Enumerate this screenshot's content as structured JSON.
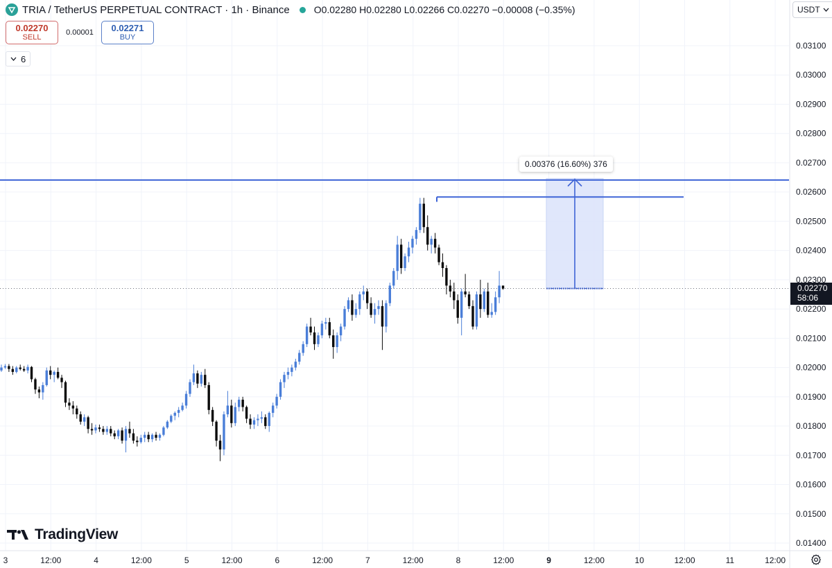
{
  "header": {
    "symbol": "TRIA / TetherUS PERPETUAL CONTRACT · 1h · Binance",
    "open_label": "O",
    "open": "0.02280",
    "high_label": "H",
    "high": "0.02280",
    "low_label": "L",
    "low": "0.02266",
    "close_label": "C",
    "close": "0.02270",
    "change": "−0.00008 (−0.35%)"
  },
  "order": {
    "sell_price": "0.02270",
    "sell_label": "SELL",
    "spread": "0.00001",
    "buy_price": "0.02271",
    "buy_label": "BUY"
  },
  "indicators_toggle": {
    "count": "6"
  },
  "currency": {
    "label": "USDT"
  },
  "branding": {
    "name": "TradingView"
  },
  "price_tag": {
    "price": "0.02270",
    "countdown": "58:06"
  },
  "measure": {
    "label": "0.00376 (16.60%) 376"
  },
  "colors": {
    "up": "#4a7ed8",
    "down": "#0b0b0b",
    "line": "#3d63d6",
    "measure_fill": "#dde4fb"
  },
  "chart_data": {
    "type": "candlestick",
    "title": "",
    "xlabel": "",
    "ylabel": "",
    "ylim": [
      0.0138,
      0.0316
    ],
    "y_ticks": [
      "0.03100",
      "0.03000",
      "0.02900",
      "0.02800",
      "0.02700",
      "0.02600",
      "0.02500",
      "0.02400",
      "0.02300",
      "0.02200",
      "0.02100",
      "0.02000",
      "0.01900",
      "0.01800",
      "0.01700",
      "0.01600",
      "0.01500",
      "0.01400"
    ],
    "x_ticks": [
      "3",
      "12:00",
      "4",
      "12:00",
      "5",
      "12:00",
      "6",
      "12:00",
      "7",
      "12:00",
      "8",
      "12:00",
      "9",
      "12:00",
      "10",
      "12:00",
      "11",
      "12:00"
    ],
    "x_tick_bold_index": 12,
    "current_price": 0.0227,
    "horizontal_lines": [
      0.02641,
      0.02583
    ],
    "measure_range": [
      0.0227,
      0.02646
    ],
    "candles": [
      [
        0.0199,
        0.0201,
        0.01985,
        0.02
      ],
      [
        0.02,
        0.02012,
        0.01995,
        0.02005
      ],
      [
        0.02005,
        0.02012,
        0.01985,
        0.01995
      ],
      [
        0.01995,
        0.02005,
        0.01975,
        0.01985
      ],
      [
        0.01985,
        0.02005,
        0.0198,
        0.02
      ],
      [
        0.02,
        0.0201,
        0.0199,
        0.01995
      ],
      [
        0.01995,
        0.02005,
        0.01985,
        0.0199
      ],
      [
        0.0199,
        0.0201,
        0.0198,
        0.02002
      ],
      [
        0.02002,
        0.02005,
        0.0195,
        0.0196
      ],
      [
        0.0196,
        0.01965,
        0.0191,
        0.01925
      ],
      [
        0.01925,
        0.01935,
        0.01895,
        0.01915
      ],
      [
        0.01915,
        0.0195,
        0.0189,
        0.0194
      ],
      [
        0.0194,
        0.02,
        0.01935,
        0.0199
      ],
      [
        0.0199,
        0.02005,
        0.0196,
        0.01975
      ],
      [
        0.01975,
        0.0199,
        0.0195,
        0.01985
      ],
      [
        0.01985,
        0.02,
        0.0196,
        0.01965
      ],
      [
        0.01965,
        0.01975,
        0.0193,
        0.0195
      ],
      [
        0.0195,
        0.01955,
        0.01865,
        0.0188
      ],
      [
        0.0188,
        0.01895,
        0.01855,
        0.0187
      ],
      [
        0.0187,
        0.01885,
        0.0184,
        0.0186
      ],
      [
        0.0186,
        0.0187,
        0.01825,
        0.0184
      ],
      [
        0.0184,
        0.0185,
        0.01805,
        0.01815
      ],
      [
        0.01815,
        0.0184,
        0.018,
        0.0183
      ],
      [
        0.0183,
        0.01835,
        0.01775,
        0.0179
      ],
      [
        0.0179,
        0.0181,
        0.0177,
        0.01785
      ],
      [
        0.01785,
        0.01805,
        0.01775,
        0.01795
      ],
      [
        0.01795,
        0.01805,
        0.0178,
        0.0179
      ],
      [
        0.0179,
        0.018,
        0.0177,
        0.0178
      ],
      [
        0.0178,
        0.018,
        0.0177,
        0.0179
      ],
      [
        0.0179,
        0.018,
        0.01765,
        0.01775
      ],
      [
        0.01775,
        0.01785,
        0.01755,
        0.01765
      ],
      [
        0.01765,
        0.0179,
        0.01755,
        0.01785
      ],
      [
        0.01785,
        0.01795,
        0.0174,
        0.0175
      ],
      [
        0.0175,
        0.018,
        0.0171,
        0.0179
      ],
      [
        0.0179,
        0.01815,
        0.0176,
        0.01775
      ],
      [
        0.01775,
        0.0179,
        0.0174,
        0.0175
      ],
      [
        0.0175,
        0.01765,
        0.0173,
        0.01745
      ],
      [
        0.01745,
        0.0177,
        0.0174,
        0.0176
      ],
      [
        0.0176,
        0.0178,
        0.01745,
        0.0177
      ],
      [
        0.0177,
        0.0178,
        0.01745,
        0.01755
      ],
      [
        0.01755,
        0.01775,
        0.01745,
        0.0177
      ],
      [
        0.0177,
        0.0178,
        0.0175,
        0.0176
      ],
      [
        0.0176,
        0.01775,
        0.0175,
        0.0177
      ],
      [
        0.0177,
        0.018,
        0.01765,
        0.01795
      ],
      [
        0.01795,
        0.0182,
        0.0179,
        0.01815
      ],
      [
        0.01815,
        0.0184,
        0.0181,
        0.01835
      ],
      [
        0.01835,
        0.0185,
        0.0182,
        0.01845
      ],
      [
        0.01845,
        0.01865,
        0.0183,
        0.01855
      ],
      [
        0.01855,
        0.0188,
        0.0185,
        0.0187
      ],
      [
        0.0187,
        0.0192,
        0.0186,
        0.0191
      ],
      [
        0.0191,
        0.0196,
        0.019,
        0.0195
      ],
      [
        0.0195,
        0.0201,
        0.0194,
        0.0198
      ],
      [
        0.0198,
        0.0199,
        0.0193,
        0.01945
      ],
      [
        0.01945,
        0.01985,
        0.01935,
        0.01975
      ],
      [
        0.01975,
        0.01995,
        0.0193,
        0.0194
      ],
      [
        0.0194,
        0.0195,
        0.0184,
        0.01855
      ],
      [
        0.01855,
        0.01865,
        0.018,
        0.01815
      ],
      [
        0.01815,
        0.0182,
        0.0173,
        0.0175
      ],
      [
        0.0175,
        0.0177,
        0.0168,
        0.0172
      ],
      [
        0.0172,
        0.0185,
        0.017,
        0.0184
      ],
      [
        0.0184,
        0.0192,
        0.0183,
        0.0187
      ],
      [
        0.0187,
        0.0189,
        0.01795,
        0.0181
      ],
      [
        0.0181,
        0.0188,
        0.018,
        0.01865
      ],
      [
        0.01865,
        0.019,
        0.0185,
        0.0189
      ],
      [
        0.0189,
        0.019,
        0.0185,
        0.01865
      ],
      [
        0.01865,
        0.0187,
        0.0181,
        0.01825
      ],
      [
        0.01825,
        0.0184,
        0.0179,
        0.01805
      ],
      [
        0.01805,
        0.0183,
        0.0179,
        0.0182
      ],
      [
        0.0182,
        0.0184,
        0.018,
        0.01825
      ],
      [
        0.01825,
        0.0185,
        0.0181,
        0.0183
      ],
      [
        0.0183,
        0.0184,
        0.0179,
        0.018
      ],
      [
        0.018,
        0.0185,
        0.0178,
        0.01845
      ],
      [
        0.01845,
        0.0188,
        0.0183,
        0.0187
      ],
      [
        0.0187,
        0.0191,
        0.0186,
        0.019
      ],
      [
        0.019,
        0.0196,
        0.0189,
        0.0195
      ],
      [
        0.0195,
        0.01985,
        0.0193,
        0.01975
      ],
      [
        0.01975,
        0.02,
        0.0196,
        0.01985
      ],
      [
        0.01985,
        0.0201,
        0.0197,
        0.02
      ],
      [
        0.02,
        0.0203,
        0.0199,
        0.0202
      ],
      [
        0.0202,
        0.0206,
        0.0201,
        0.0205
      ],
      [
        0.0205,
        0.0209,
        0.0204,
        0.0208
      ],
      [
        0.0208,
        0.0215,
        0.0207,
        0.0214
      ],
      [
        0.0214,
        0.0217,
        0.0211,
        0.0212
      ],
      [
        0.0212,
        0.0214,
        0.0206,
        0.0208
      ],
      [
        0.0208,
        0.0212,
        0.0207,
        0.0211
      ],
      [
        0.0211,
        0.0216,
        0.021,
        0.0215
      ],
      [
        0.0215,
        0.0217,
        0.0213,
        0.02155
      ],
      [
        0.02155,
        0.0217,
        0.021,
        0.0211
      ],
      [
        0.0211,
        0.0213,
        0.0203,
        0.0207
      ],
      [
        0.0207,
        0.0212,
        0.0205,
        0.0211
      ],
      [
        0.0211,
        0.0215,
        0.0209,
        0.0214
      ],
      [
        0.0214,
        0.0221,
        0.0213,
        0.022
      ],
      [
        0.022,
        0.0224,
        0.0219,
        0.0223
      ],
      [
        0.0223,
        0.0225,
        0.0216,
        0.0218
      ],
      [
        0.0218,
        0.0222,
        0.0217,
        0.022
      ],
      [
        0.022,
        0.0226,
        0.0218,
        0.0225
      ],
      [
        0.0225,
        0.0228,
        0.0223,
        0.0226
      ],
      [
        0.0226,
        0.0227,
        0.022,
        0.0222
      ],
      [
        0.0222,
        0.0224,
        0.0217,
        0.0218
      ],
      [
        0.0218,
        0.0222,
        0.0215,
        0.022
      ],
      [
        0.022,
        0.0223,
        0.0218,
        0.0221
      ],
      [
        0.0221,
        0.0223,
        0.0206,
        0.0214
      ],
      [
        0.0214,
        0.0223,
        0.0212,
        0.0222
      ],
      [
        0.0222,
        0.0229,
        0.0221,
        0.0228
      ],
      [
        0.0228,
        0.0234,
        0.0227,
        0.0233
      ],
      [
        0.0233,
        0.0245,
        0.023,
        0.0242
      ],
      [
        0.0242,
        0.0244,
        0.0232,
        0.0234
      ],
      [
        0.0234,
        0.0239,
        0.0233,
        0.0238
      ],
      [
        0.0238,
        0.0243,
        0.0236,
        0.0241
      ],
      [
        0.0241,
        0.0245,
        0.0239,
        0.0244
      ],
      [
        0.0244,
        0.0248,
        0.0242,
        0.0247
      ],
      [
        0.0247,
        0.0258,
        0.0246,
        0.0256
      ],
      [
        0.0256,
        0.0258,
        0.0246,
        0.0248
      ],
      [
        0.0248,
        0.0252,
        0.024,
        0.0242
      ],
      [
        0.0242,
        0.0245,
        0.0239,
        0.0244
      ],
      [
        0.0244,
        0.0246,
        0.0239,
        0.0241
      ],
      [
        0.0241,
        0.0242,
        0.0235,
        0.0236
      ],
      [
        0.0236,
        0.0239,
        0.0231,
        0.0234
      ],
      [
        0.0234,
        0.0235,
        0.0225,
        0.0228
      ],
      [
        0.0228,
        0.023,
        0.0224,
        0.0226
      ],
      [
        0.0226,
        0.0229,
        0.022,
        0.0223
      ],
      [
        0.0223,
        0.0225,
        0.0215,
        0.0217
      ],
      [
        0.0217,
        0.0227,
        0.0211,
        0.0226
      ],
      [
        0.0226,
        0.0232,
        0.0224,
        0.0225
      ],
      [
        0.0225,
        0.0226,
        0.022,
        0.0221
      ],
      [
        0.0221,
        0.0223,
        0.0213,
        0.0214
      ],
      [
        0.0214,
        0.0226,
        0.0213,
        0.0225
      ],
      [
        0.0225,
        0.023,
        0.0217,
        0.022
      ],
      [
        0.022,
        0.0227,
        0.0219,
        0.0226
      ],
      [
        0.0226,
        0.0229,
        0.0217,
        0.0218
      ],
      [
        0.0218,
        0.0222,
        0.0217,
        0.0219
      ],
      [
        0.0219,
        0.0226,
        0.0218,
        0.0224
      ],
      [
        0.0224,
        0.0233,
        0.0222,
        0.0228
      ],
      [
        0.0228,
        0.0228,
        0.02266,
        0.0227
      ]
    ]
  }
}
